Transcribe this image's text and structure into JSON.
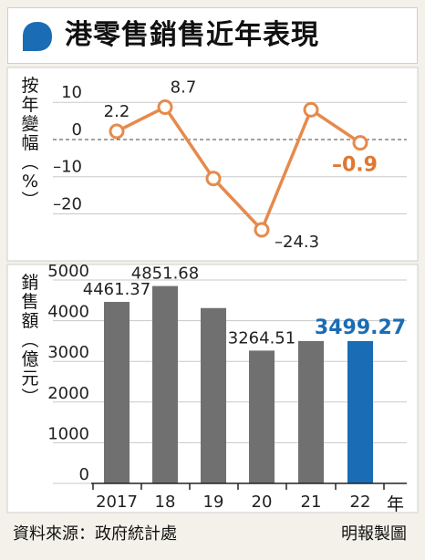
{
  "title": "港零售銷售近年表現",
  "colors": {
    "accent_blue": "#1a6cb5",
    "line_orange": "#e68a4c",
    "bar_gray": "#707070",
    "label_orange": "#e0772f"
  },
  "chart_data": [
    {
      "type": "line",
      "ylabel_chars": [
        "按",
        "年",
        "變",
        "幅",
        "︵",
        "%",
        "︶"
      ],
      "x": [
        "2017",
        "18",
        "19",
        "20",
        "21",
        "22"
      ],
      "series": [
        {
          "values": [
            2.2,
            8.7,
            -10.5,
            -24.3,
            8.0,
            -0.9
          ]
        }
      ],
      "point_labels": [
        "2.2",
        "8.7",
        "",
        "–24.3",
        "",
        "–0.9"
      ],
      "yticks": [
        "10",
        "0",
        "–10",
        "–20"
      ],
      "ytick_values": [
        10,
        0,
        -10,
        -20
      ],
      "ylim": [
        -27,
        13
      ],
      "zero_line": "dashed",
      "highlight_last": true
    },
    {
      "type": "bar",
      "ylabel_chars": [
        "銷",
        "售",
        "額",
        "︵",
        "億",
        "元",
        "︶"
      ],
      "categories": [
        "2017",
        "18",
        "19",
        "20",
        "21",
        "22"
      ],
      "x_suffix": "年",
      "values": [
        4461.37,
        4851.68,
        4310,
        3264.51,
        3500,
        3499.27
      ],
      "value_labels": [
        "4461.37",
        "4851.68",
        "",
        "3264.51",
        "",
        "3499.27"
      ],
      "yticks": [
        "5000",
        "4000",
        "3000",
        "2000",
        "1000",
        "0"
      ],
      "ytick_values": [
        5000,
        4000,
        3000,
        2000,
        1000,
        0
      ],
      "ylim": [
        0,
        5000
      ],
      "highlight_last": true
    }
  ],
  "footer": {
    "source": "資料來源：政府統計處",
    "credit": "明報製圖"
  }
}
